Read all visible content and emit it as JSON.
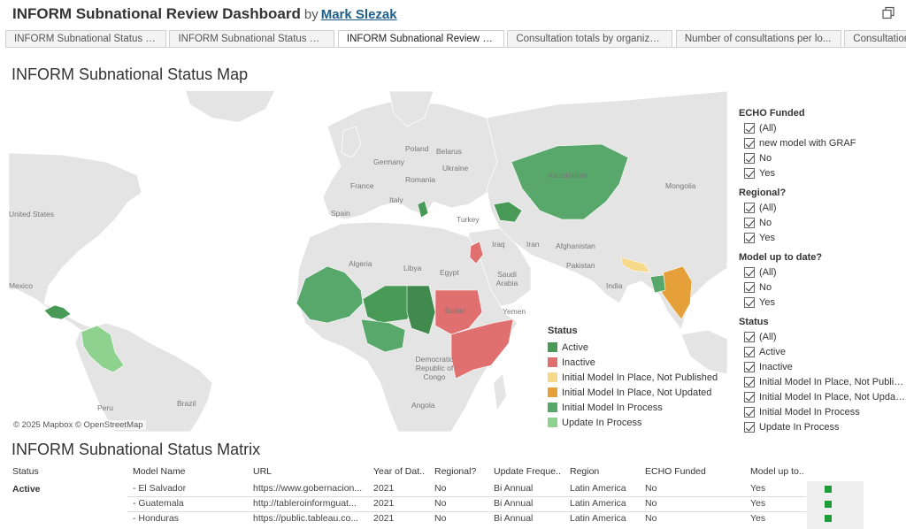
{
  "header": {
    "title": "INFORM Subnational Review Dashboard",
    "by": "by",
    "author": "Mark Slezak"
  },
  "tabs": [
    "INFORM Subnational Status Map",
    "INFORM Subnational Status Ma...",
    "INFORM Subnational Review Da...",
    "Consultation totals by organizat...",
    "Number of consultations per lo...",
    "Consultation totals"
  ],
  "active_tab_index": 2,
  "map": {
    "title": "INFORM Subnational Status Map",
    "attribution": "© 2025 Mapbox  © OpenStreetMap",
    "place_labels": [
      "United States",
      "Mexico",
      "Brazil",
      "Peru",
      "Belarus",
      "Poland",
      "Germany",
      "France",
      "Spain",
      "Ukraine",
      "Romania",
      "Italy",
      "Turkey",
      "Kazakhstan",
      "Mongolia",
      "Iraq",
      "Iran",
      "Afghanistan",
      "Pakistan",
      "India",
      "Algeria",
      "Libya",
      "Egypt",
      "Saudi Arabia",
      "Yemen",
      "Sudan",
      "Democratic Republic of Congo",
      "Angola"
    ],
    "legend": {
      "title": "Status",
      "items": [
        {
          "label": "Active",
          "color": "#4a9a57"
        },
        {
          "label": "Inactive",
          "color": "#e06f6f"
        },
        {
          "label": "Initial Model In Place, Not Published",
          "color": "#f6d98b"
        },
        {
          "label": "Initial Model In Place, Not Updated",
          "color": "#e5a03a"
        },
        {
          "label": "Initial Model In Process",
          "color": "#57a86a"
        },
        {
          "label": "Update In Process",
          "color": "#8fd28f"
        }
      ]
    }
  },
  "filters": [
    {
      "title": "ECHO Funded",
      "items": [
        "(All)",
        "new model with GRAF",
        "No",
        "Yes"
      ]
    },
    {
      "title": "Regional?",
      "items": [
        "(All)",
        "No",
        "Yes"
      ]
    },
    {
      "title": "Model up to date?",
      "items": [
        "(All)",
        "No",
        "Yes"
      ]
    },
    {
      "title": "Status",
      "items": [
        "(All)",
        "Active",
        "Inactive",
        "Initial Model In Place, Not Publis...",
        "Initial Model In Place, Not Updat...",
        "Initial Model In Process",
        "Update In Process"
      ]
    }
  ],
  "matrix": {
    "title": "INFORM Subnational Status Matrix",
    "columns": [
      "Status",
      "Model Name",
      "URL",
      "Year of Dat..",
      "Regional?",
      "Update Freque..",
      "Region",
      "ECHO Funded",
      "Model up to.."
    ],
    "status_group": "Active",
    "rows": [
      {
        "model": "- El Salvador",
        "url": "https://www.gobernacion...",
        "year": "2021",
        "regional": "No",
        "freq": "Bi Annual",
        "region": "Latin America",
        "echo": "No",
        "uptodate": "Yes"
      },
      {
        "model": "- Guatemala",
        "url": "http://tableroinformguat...",
        "year": "2021",
        "regional": "No",
        "freq": "Bi Annual",
        "region": "Latin America",
        "echo": "No",
        "uptodate": "Yes"
      },
      {
        "model": "- Honduras",
        "url": "https://public.tableau.co...",
        "year": "2021",
        "regional": "No",
        "freq": "Bi Annual",
        "region": "Latin America",
        "echo": "No",
        "uptodate": "Yes"
      }
    ],
    "indicator_color": "#1e9b3a"
  },
  "colors": {
    "land": "#e4e4e4",
    "water": "#ffffff",
    "border": "#ffffff",
    "active": "#4a9a57",
    "inactive": "#e06f6f",
    "not_published": "#f6d98b",
    "not_updated": "#e5a03a",
    "in_process": "#57a86a",
    "update": "#8fd28f"
  }
}
